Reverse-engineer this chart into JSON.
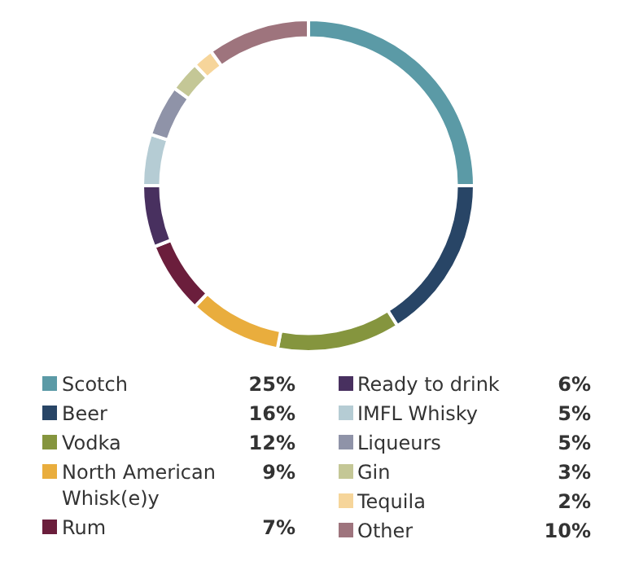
{
  "chart_data": {
    "type": "donut",
    "categories": [
      "Scotch",
      "Beer",
      "Vodka",
      "North American Whisk(e)y",
      "Rum",
      "Ready to drink",
      "IMFL Whisky",
      "Liqueurs",
      "Gin",
      "Tequila",
      "Other"
    ],
    "values": [
      25,
      16,
      12,
      9,
      7,
      6,
      5,
      5,
      3,
      2,
      10
    ],
    "colors": [
      "#5b9aa6",
      "#284566",
      "#85953e",
      "#e9ad3d",
      "#6b1e3c",
      "#48305f",
      "#b5ccd4",
      "#8f93a8",
      "#c4c796",
      "#f6d59a",
      "#9e747d"
    ],
    "value_labels": [
      "25%",
      "16%",
      "12%",
      "9%",
      "7%",
      "6%",
      "5%",
      "5%",
      "3%",
      "2%",
      "10%"
    ],
    "legend": "bottom"
  }
}
